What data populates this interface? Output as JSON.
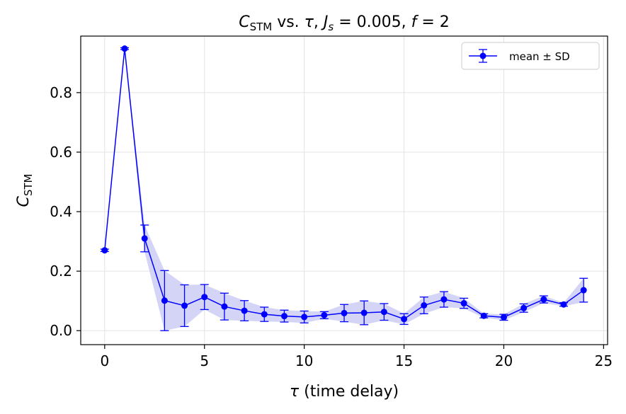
{
  "chart_data": {
    "type": "line",
    "title": {
      "c_symbol": "C",
      "c_subscript": "STM",
      "rest_prefix": " vs. ",
      "tau_symbol": "τ",
      "comma1": ", ",
      "js_symbol": "J",
      "js_subscript": "s",
      "js_eq": " = 0.005, ",
      "f_symbol": "f",
      "f_eq": " = 2"
    },
    "xlabel": {
      "symbol": "τ",
      "text": " (time delay)"
    },
    "ylabel": {
      "symbol": "C",
      "subscript": "STM"
    },
    "xlim": [
      -1.2,
      25.2
    ],
    "ylim": [
      -0.047,
      0.99
    ],
    "xticks": [
      0,
      5,
      10,
      15,
      20,
      25
    ],
    "xtick_labels": [
      "0",
      "5",
      "10",
      "15",
      "20",
      "25"
    ],
    "yticks": [
      0.0,
      0.2,
      0.4,
      0.6,
      0.8
    ],
    "ytick_labels": [
      "0.0",
      "0.2",
      "0.4",
      "0.6",
      "0.8"
    ],
    "grid": true,
    "legend": {
      "position": "top-right",
      "label": "mean ± SD"
    },
    "series": [
      {
        "name": "mean ± SD",
        "color": "#0000ff",
        "band_color": "#ccccf5",
        "x": [
          0,
          1,
          2,
          3,
          4,
          5,
          6,
          7,
          8,
          9,
          10,
          11,
          12,
          13,
          14,
          15,
          16,
          17,
          18,
          19,
          20,
          21,
          22,
          23,
          24
        ],
        "y": [
          0.27,
          0.948,
          0.31,
          0.101,
          0.084,
          0.113,
          0.081,
          0.067,
          0.055,
          0.049,
          0.046,
          0.052,
          0.059,
          0.06,
          0.063,
          0.039,
          0.085,
          0.105,
          0.092,
          0.05,
          0.045,
          0.076,
          0.105,
          0.088,
          0.136
        ],
        "sd": [
          0.004,
          0.003,
          0.045,
          0.101,
          0.07,
          0.042,
          0.045,
          0.034,
          0.024,
          0.02,
          0.02,
          0.012,
          0.029,
          0.04,
          0.028,
          0.018,
          0.028,
          0.026,
          0.017,
          0.007,
          0.01,
          0.014,
          0.012,
          0.006,
          0.04
        ]
      }
    ]
  }
}
